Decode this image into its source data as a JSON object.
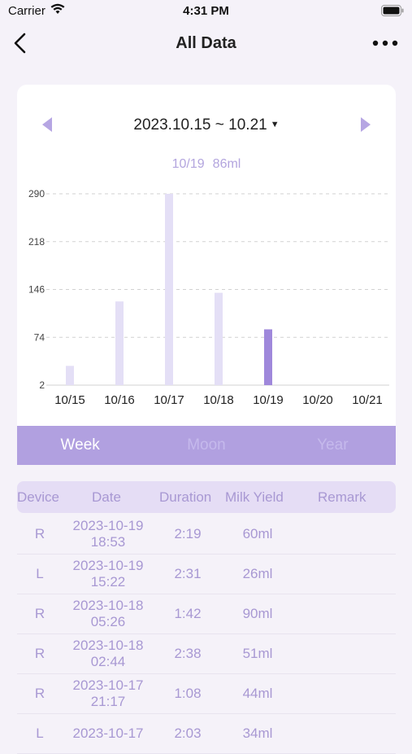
{
  "status_bar": {
    "carrier": "Carrier",
    "time": "4:31 PM"
  },
  "nav": {
    "title": "All Data"
  },
  "range": {
    "label": "2023.10.15 ~ 10.21"
  },
  "selected": {
    "date": "10/19",
    "value": "86ml"
  },
  "chart_data": {
    "type": "bar",
    "categories": [
      "10/15",
      "10/16",
      "10/17",
      "10/18",
      "10/19",
      "10/20",
      "10/21"
    ],
    "values": [
      31,
      128,
      290,
      141,
      86,
      0,
      0
    ],
    "yticks": [
      2,
      74,
      146,
      218,
      290
    ],
    "ylim": [
      2,
      290
    ],
    "highlight_index": 4,
    "colors": {
      "bar": "#e4dff6",
      "highlight": "#9f88db",
      "grid": "#d2d2d2",
      "label": "#222222"
    }
  },
  "period_tabs": [
    {
      "label": "Week",
      "active": true
    },
    {
      "label": "Moon",
      "active": false
    },
    {
      "label": "Year",
      "active": false
    }
  ],
  "table": {
    "headers": {
      "device": "Device",
      "date": "Date",
      "duration": "Duration",
      "yield": "Milk Yield",
      "remark": "Remark"
    },
    "rows": [
      {
        "device": "R",
        "date": "2023-10-19",
        "time": "18:53",
        "duration": "2:19",
        "yield": "60ml",
        "remark": ""
      },
      {
        "device": "L",
        "date": "2023-10-19",
        "time": "15:22",
        "duration": "2:31",
        "yield": "26ml",
        "remark": ""
      },
      {
        "device": "R",
        "date": "2023-10-18",
        "time": "05:26",
        "duration": "1:42",
        "yield": "90ml",
        "remark": ""
      },
      {
        "device": "R",
        "date": "2023-10-18",
        "time": "02:44",
        "duration": "2:38",
        "yield": "51ml",
        "remark": ""
      },
      {
        "device": "R",
        "date": "2023-10-17",
        "time": "21:17",
        "duration": "1:08",
        "yield": "44ml",
        "remark": ""
      },
      {
        "device": "L",
        "date": "2023-10-17",
        "time": "",
        "duration": "2:03",
        "yield": "34ml",
        "remark": ""
      }
    ]
  },
  "colors": {
    "accent": "#b1a0e0",
    "accent_text": "#a898d3",
    "background": "#f5f2f9"
  }
}
